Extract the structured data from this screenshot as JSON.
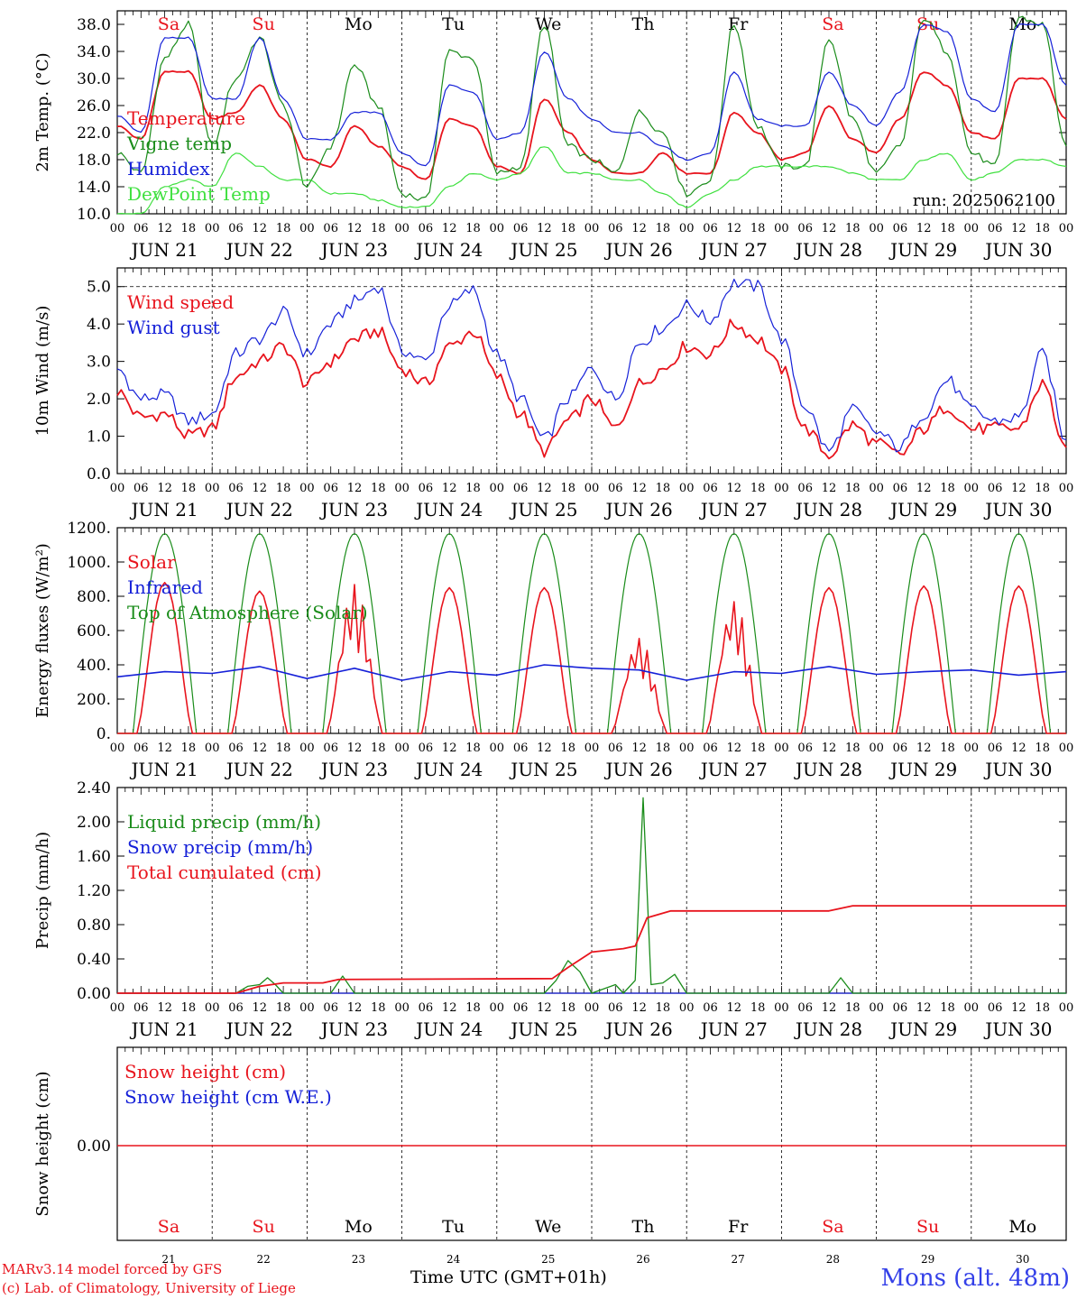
{
  "days": {
    "weekdays": [
      "Sa",
      "Su",
      "Mo",
      "Tu",
      "We",
      "Th",
      "Fr",
      "Sa",
      "Su",
      "Mo"
    ],
    "weekday_colors": [
      "#e8141d",
      "#e8141d",
      "#000000",
      "#000000",
      "#000000",
      "#000000",
      "#000000",
      "#e8141d",
      "#e8141d",
      "#000000"
    ],
    "dates": [
      "JUN 21",
      "JUN 22",
      "JUN 23",
      "JUN 24",
      "JUN 25",
      "JUN 26",
      "JUN 27",
      "JUN 28",
      "JUN 29",
      "JUN 30"
    ],
    "day_numbers": [
      "21",
      "22",
      "23",
      "24",
      "25",
      "26",
      "27",
      "28",
      "29",
      "30"
    ],
    "hour_ticks": [
      "00",
      "06",
      "12",
      "18"
    ]
  },
  "footer": {
    "model": "MARv3.14 model forced by GFS",
    "credit": "(c) Lab. of Climatology, University of Liege",
    "x_title": "Time UTC (GMT+01h)",
    "station": "Mons (alt. 48m)"
  },
  "colors": {
    "red": "#e8141d",
    "green": "#1a8c1a",
    "blue": "#1520d8",
    "lightgreen": "#3fe03f"
  },
  "chart_data": [
    {
      "type": "line",
      "ylabel": "2m Temp. (°C)",
      "ylim": [
        10,
        40
      ],
      "yticks": [
        "10.0",
        "14.0",
        "18.0",
        "22.0",
        "26.0",
        "30.0",
        "34.0",
        "38.0"
      ],
      "ytick_values": [
        10,
        14,
        18,
        22,
        26,
        30,
        34,
        38
      ],
      "annotation": "run: 2025062100",
      "x_hours": [
        0,
        6,
        12,
        18,
        24,
        30,
        36,
        42,
        48,
        54,
        60,
        66,
        72,
        78,
        84,
        90,
        96,
        102,
        108,
        114,
        120,
        126,
        132,
        138,
        144,
        150,
        156,
        162,
        168,
        174,
        180,
        186,
        192,
        198,
        204,
        210,
        216,
        222,
        228,
        234,
        240
      ],
      "series": [
        {
          "name": "Temperature",
          "color": "red",
          "values": [
            23,
            21,
            31,
            31,
            24,
            25,
            29,
            24,
            18,
            17,
            23,
            20,
            17,
            15,
            24,
            23,
            17,
            16,
            27,
            22,
            18,
            16,
            16,
            19,
            16,
            16,
            25,
            22,
            18,
            19,
            26,
            21,
            19,
            24,
            31,
            29,
            22,
            21,
            30,
            30,
            24
          ]
        },
        {
          "name": "Vigne temp",
          "color": "green",
          "values": [
            19,
            16,
            33,
            38,
            20,
            30,
            36,
            26,
            14,
            20,
            32,
            26,
            13,
            12,
            34,
            33,
            16,
            17,
            38,
            20,
            18,
            16,
            25,
            22,
            13,
            15,
            38,
            23,
            17,
            17,
            36,
            24,
            16,
            20,
            39,
            34,
            19,
            17,
            39,
            38,
            20
          ]
        },
        {
          "name": "Humidex",
          "color": "blue",
          "values": [
            24.5,
            22,
            36,
            36,
            27,
            27,
            36,
            27,
            21,
            21,
            25,
            25,
            19,
            17,
            29,
            28,
            21,
            22,
            34,
            27,
            24,
            22,
            22,
            20,
            18,
            19,
            31,
            24,
            23,
            23,
            31,
            26,
            23,
            28,
            38,
            37,
            27,
            25,
            38,
            38,
            29
          ]
        },
        {
          "name": "DewPoint Temp",
          "color": "lightgreen",
          "values": [
            10,
            10,
            14,
            15,
            14,
            19,
            17,
            15,
            15,
            13,
            13,
            12,
            11,
            11,
            14,
            16,
            15,
            16,
            20,
            16,
            16,
            15,
            15,
            13,
            11,
            13,
            15,
            17,
            17,
            17,
            17,
            16,
            15,
            15,
            18,
            19,
            15,
            16,
            18,
            18,
            17
          ]
        }
      ]
    },
    {
      "type": "line",
      "ylabel": "10m Wind (m/s)",
      "ylim": [
        0,
        5.5
      ],
      "yticks": [
        "0.0",
        "1.0",
        "2.0",
        "3.0",
        "4.0",
        "5.0"
      ],
      "ytick_values": [
        0,
        1,
        2,
        3,
        4,
        5
      ],
      "ref_line": 5.0,
      "x_hours": [
        0,
        6,
        12,
        18,
        24,
        30,
        36,
        42,
        48,
        54,
        60,
        66,
        72,
        78,
        84,
        90,
        96,
        102,
        108,
        114,
        120,
        126,
        132,
        138,
        144,
        150,
        156,
        162,
        168,
        174,
        180,
        186,
        192,
        198,
        204,
        210,
        216,
        222,
        228,
        234,
        240
      ],
      "series": [
        {
          "name": "Wind speed",
          "color": "red",
          "values": [
            2.2,
            1.5,
            1.6,
            1.0,
            1.2,
            2.6,
            3.0,
            3.4,
            2.4,
            3.0,
            3.6,
            3.8,
            2.8,
            2.4,
            3.4,
            3.8,
            2.6,
            1.6,
            0.6,
            1.4,
            2.0,
            1.2,
            2.4,
            2.8,
            3.4,
            3.2,
            4.0,
            3.6,
            2.8,
            1.2,
            0.5,
            1.3,
            0.8,
            0.5,
            1.2,
            1.8,
            1.2,
            1.2,
            1.2,
            2.4,
            0.7
          ]
        },
        {
          "name": "Wind gust",
          "color": "blue",
          "values": [
            2.8,
            2.0,
            2.1,
            1.4,
            1.6,
            3.2,
            3.6,
            4.3,
            3.2,
            4.0,
            4.6,
            5.0,
            3.3,
            3.0,
            4.5,
            4.9,
            3.2,
            2.0,
            0.9,
            2.0,
            2.8,
            2.0,
            3.5,
            3.9,
            4.5,
            4.1,
            5.1,
            5.0,
            3.6,
            1.8,
            0.6,
            1.7,
            1.1,
            0.7,
            1.6,
            2.5,
            1.7,
            1.4,
            1.5,
            3.2,
            0.9
          ]
        }
      ]
    },
    {
      "type": "line",
      "ylabel": "Energy fluxes (W/m²)",
      "ylim": [
        0,
        1200
      ],
      "yticks": [
        "0.",
        "200.",
        "400.",
        "600.",
        "800.",
        "1000.",
        "1200."
      ],
      "ytick_values": [
        0,
        200,
        400,
        600,
        800,
        1000,
        1200
      ],
      "series": [
        {
          "name": "Solar",
          "color": "red",
          "day_peaks": [
            880,
            830,
            870,
            850,
            850,
            560,
            780,
            850,
            860,
            860
          ]
        },
        {
          "name": "Infrared",
          "color": "blue",
          "x_hours": [
            0,
            12,
            24,
            36,
            48,
            60,
            72,
            84,
            96,
            108,
            120,
            132,
            144,
            156,
            168,
            180,
            192,
            204,
            216,
            228,
            240
          ],
          "values": [
            330,
            360,
            350,
            390,
            320,
            380,
            310,
            360,
            340,
            400,
            380,
            370,
            310,
            360,
            350,
            390,
            345,
            360,
            370,
            340,
            360
          ]
        },
        {
          "name": "Top of Atmosphere (Solar)",
          "color": "green",
          "day_peak": 1165,
          "day_hours": [
            4,
            20
          ]
        }
      ]
    },
    {
      "type": "line",
      "ylabel": "Precip (mm/h)",
      "ylim": [
        0,
        2.4
      ],
      "yticks": [
        "0.00",
        "0.40",
        "0.80",
        "1.20",
        "1.60",
        "2.00",
        "2.40"
      ],
      "ytick_values": [
        0,
        0.4,
        0.8,
        1.2,
        1.6,
        2.0,
        2.4
      ],
      "series": [
        {
          "name": "Liquid precip (mm/h)",
          "color": "green",
          "points": [
            [
              0,
              0
            ],
            [
              30,
              0
            ],
            [
              33,
              0.08
            ],
            [
              36,
              0.1
            ],
            [
              38,
              0.18
            ],
            [
              40,
              0.1
            ],
            [
              42,
              0
            ],
            [
              54,
              0
            ],
            [
              57,
              0.2
            ],
            [
              60,
              0
            ],
            [
              108,
              0
            ],
            [
              111,
              0.15
            ],
            [
              114,
              0.38
            ],
            [
              117,
              0.25
            ],
            [
              120,
              0
            ],
            [
              126,
              0.1
            ],
            [
              128,
              0
            ],
            [
              131,
              0.15
            ],
            [
              133,
              2.28
            ],
            [
              135,
              0.1
            ],
            [
              138,
              0.12
            ],
            [
              141,
              0.22
            ],
            [
              144,
              0
            ],
            [
              180,
              0
            ],
            [
              183,
              0.18
            ],
            [
              186,
              0
            ],
            [
              240,
              0
            ]
          ]
        },
        {
          "name": "Snow precip (mm/h)",
          "color": "blue",
          "points": [
            [
              0,
              0
            ],
            [
              240,
              0
            ]
          ]
        },
        {
          "name": "Total cumulated (cm)",
          "color": "red",
          "points": [
            [
              0,
              0
            ],
            [
              30,
              0
            ],
            [
              36,
              0.08
            ],
            [
              42,
              0.12
            ],
            [
              52,
              0.12
            ],
            [
              56,
              0.16
            ],
            [
              110,
              0.17
            ],
            [
              114,
              0.3
            ],
            [
              120,
              0.48
            ],
            [
              128,
              0.52
            ],
            [
              131,
              0.55
            ],
            [
              134,
              0.88
            ],
            [
              140,
              0.96
            ],
            [
              180,
              0.96
            ],
            [
              186,
              1.02
            ],
            [
              240,
              1.02
            ]
          ]
        }
      ]
    },
    {
      "type": "line",
      "ylabel": "Snow height (cm)",
      "yticks": [
        "0.00"
      ],
      "series": [
        {
          "name": "Snow height (cm)",
          "color": "red",
          "values": [
            0,
            0
          ]
        },
        {
          "name": "Snow height (cm W.E.)",
          "color": "blue",
          "values": [
            0,
            0
          ]
        }
      ]
    }
  ]
}
